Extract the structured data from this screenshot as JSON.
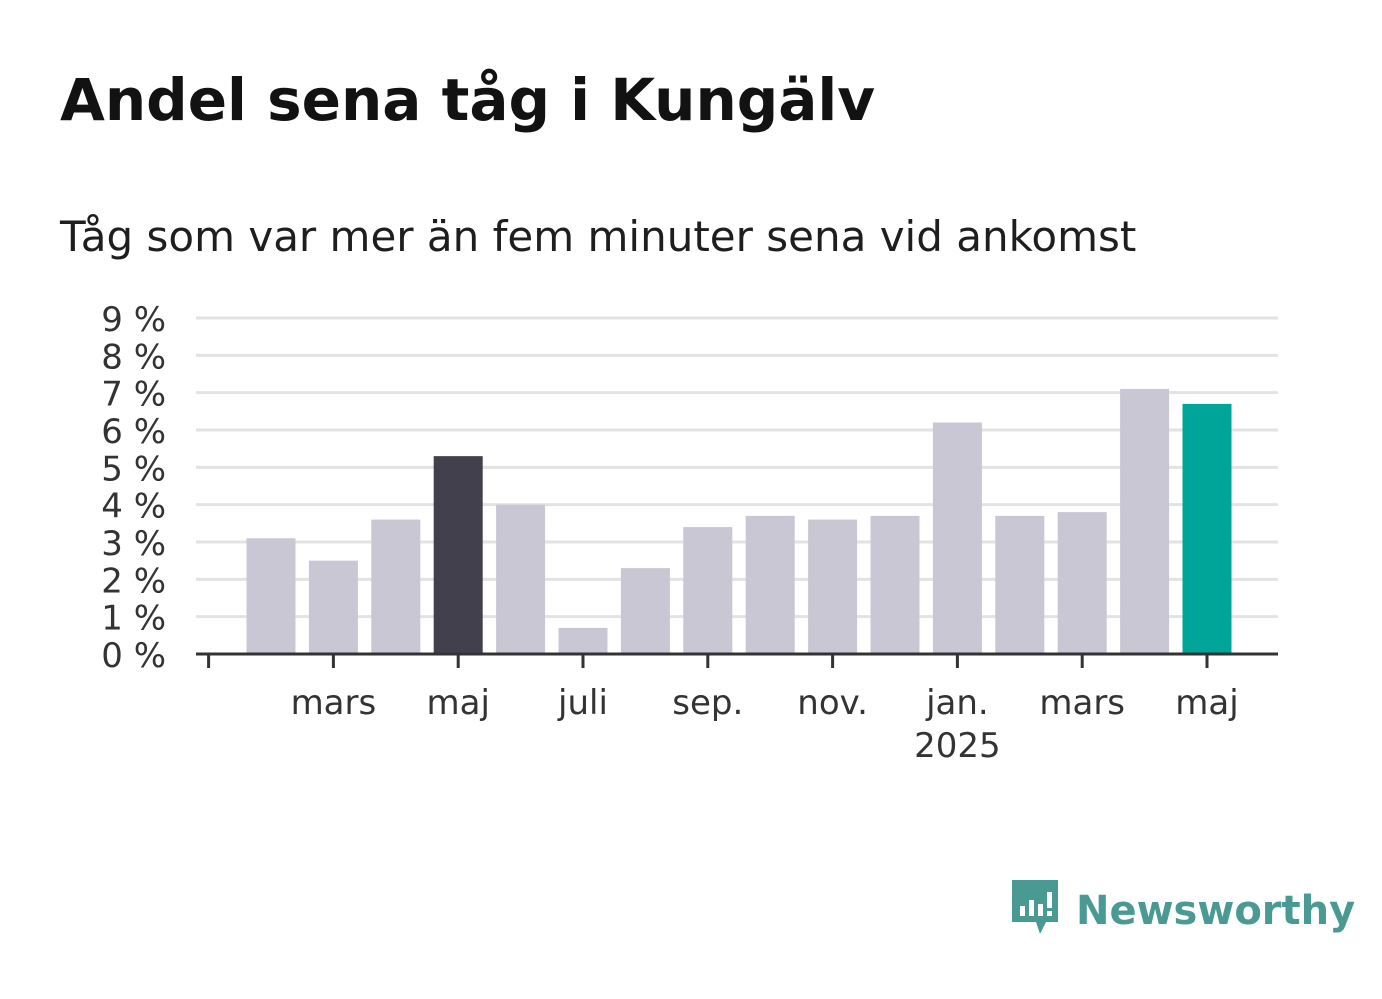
{
  "title": "Andel sena tåg i Kungälv",
  "subtitle": "Tåg som var mer än fem minuter sena vid ankomst",
  "brand": {
    "name": "Newsworthy",
    "icon": "newsworthy-logo-icon"
  },
  "colors": {
    "default_bar": "#c8c7d3",
    "highlight_bar": "#42404d",
    "latest_bar": "#00a599",
    "grid": "#e3e3e3",
    "axis": "#333333",
    "text": "#333333"
  },
  "chart_data": {
    "type": "bar",
    "categories": [
      "2024-02",
      "2024-03",
      "2024-04",
      "2024-05",
      "2024-06",
      "2024-07",
      "2024-08",
      "2024-09",
      "2024-10",
      "2024-11",
      "2024-12",
      "2025-01",
      "2025-02",
      "2025-03",
      "2025-04",
      "2025-05"
    ],
    "values": [
      3.1,
      2.5,
      3.6,
      5.3,
      4.0,
      0.7,
      2.3,
      3.4,
      3.7,
      3.6,
      3.7,
      6.2,
      3.7,
      3.8,
      7.1,
      6.7
    ],
    "highlight": {
      "2024-05": "highlight",
      "2025-05": "latest"
    },
    "ylim": [
      0,
      9
    ],
    "y_ticks": [
      0,
      1,
      2,
      3,
      4,
      5,
      6,
      7,
      8,
      9
    ],
    "y_tick_labels": [
      "0 %",
      "1 %",
      "2 %",
      "3 %",
      "4 %",
      "5 %",
      "6 %",
      "7 %",
      "8 %",
      "9 %"
    ],
    "x_ticks": [
      {
        "category": "2024-01",
        "label": "",
        "sublabel": ""
      },
      {
        "category": "2024-03",
        "label": "mars",
        "sublabel": ""
      },
      {
        "category": "2024-05",
        "label": "maj",
        "sublabel": ""
      },
      {
        "category": "2024-07",
        "label": "juli",
        "sublabel": ""
      },
      {
        "category": "2024-09",
        "label": "sep.",
        "sublabel": ""
      },
      {
        "category": "2024-11",
        "label": "nov.",
        "sublabel": ""
      },
      {
        "category": "2025-01",
        "label": "jan.",
        "sublabel": "2025"
      },
      {
        "category": "2025-03",
        "label": "mars",
        "sublabel": ""
      },
      {
        "category": "2025-05",
        "label": "maj",
        "sublabel": ""
      }
    ],
    "xlabel": "",
    "ylabel": "",
    "grid": true
  }
}
